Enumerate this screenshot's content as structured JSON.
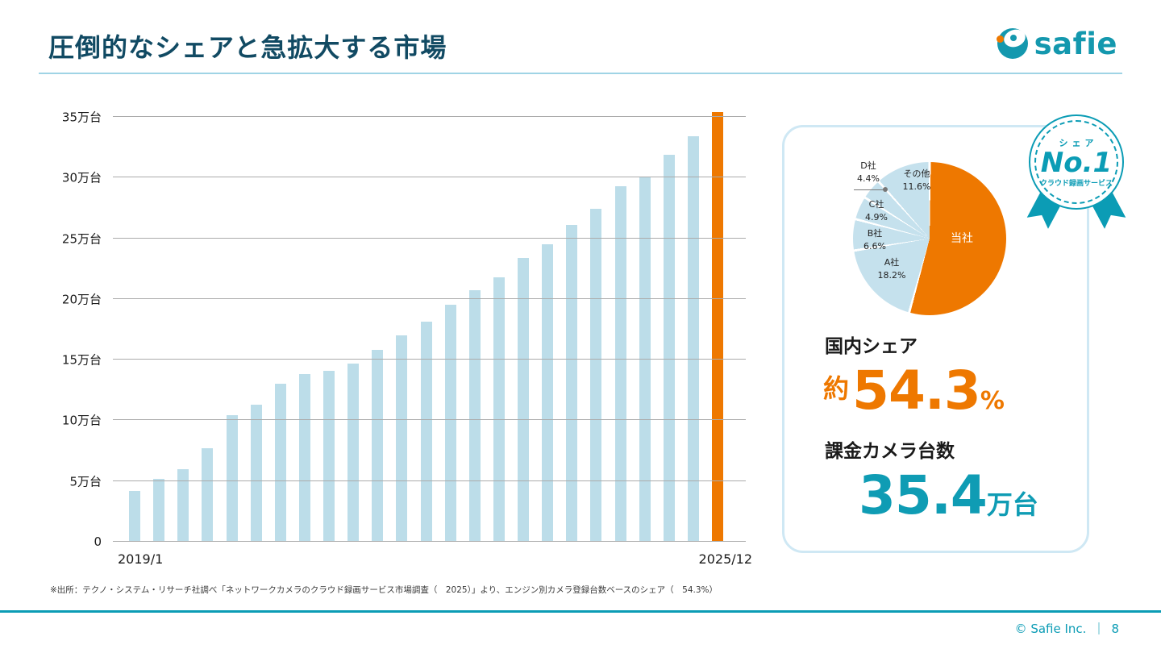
{
  "slide": {
    "title": "圧倒的なシェアと急拡大する市場",
    "logo_text": "safie",
    "footnote": "※出所：テクノ・システム・リサーチ社調べ「ネットワークカメラのクラウド録画サービス市場調査（　2025）」より、エンジン別カメラ登録台数ベースのシェア（　54.3%）",
    "copyright": "© Safie Inc.",
    "divider": "｜",
    "page_number": "8"
  },
  "chart_data": [
    {
      "type": "bar",
      "x_first_label": "2019/1",
      "x_last_label": "2025/12",
      "ylim": [
        0,
        35
      ],
      "unit": "万台",
      "yticks": [
        {
          "label": "35万台",
          "value": 35
        },
        {
          "label": "30万台",
          "value": 30
        },
        {
          "label": "25万台",
          "value": 25
        },
        {
          "label": "20万台",
          "value": 20
        },
        {
          "label": "15万台",
          "value": 15
        },
        {
          "label": "10万台",
          "value": 10
        },
        {
          "label": "5万台",
          "value": 5
        },
        {
          "label": "0",
          "value": 0
        }
      ],
      "values": [
        4.2,
        5.2,
        6.0,
        7.7,
        10.4,
        11.3,
        13.0,
        13.8,
        14.1,
        14.7,
        15.8,
        17.0,
        18.1,
        19.5,
        20.7,
        21.8,
        23.4,
        24.5,
        26.1,
        27.4,
        29.3,
        30.0,
        31.9,
        33.4,
        35.4
      ],
      "highlight_index": 24,
      "bar_color": "#bcdde9",
      "highlight_color": "#ee7800",
      "grid": true,
      "legend": false
    },
    {
      "type": "pie",
      "start_angle_deg": 0,
      "segments": [
        {
          "label": "当社",
          "value": 54.3,
          "color": "#ee7800"
        },
        {
          "label": "A社",
          "value": 18.2,
          "pct": "18.2%",
          "color": "#c5e1ed"
        },
        {
          "label": "B社",
          "value": 6.6,
          "pct": "6.6%",
          "color": "#c5e1ed"
        },
        {
          "label": "C社",
          "value": 4.9,
          "pct": "4.9%",
          "color": "#c5e1ed"
        },
        {
          "label": "D社",
          "value": 4.4,
          "pct": "4.4%",
          "color": "#c5e1ed"
        },
        {
          "label": "その他",
          "value": 11.6,
          "pct": "11.6%",
          "color": "#c5e1ed"
        }
      ]
    }
  ],
  "stats_card": {
    "badge": {
      "top": "シェア",
      "main": "No.1",
      "bottom": "クラウド録画サービス"
    },
    "share_label": "国内シェア",
    "share_prefix": "約",
    "share_value": "54.3",
    "share_unit": "%",
    "share_color": "#ee7800",
    "cameras_label": "課金カメラ台数",
    "cameras_value": "35.4",
    "cameras_unit": "万台",
    "cameras_color": "#0f9cb4"
  }
}
